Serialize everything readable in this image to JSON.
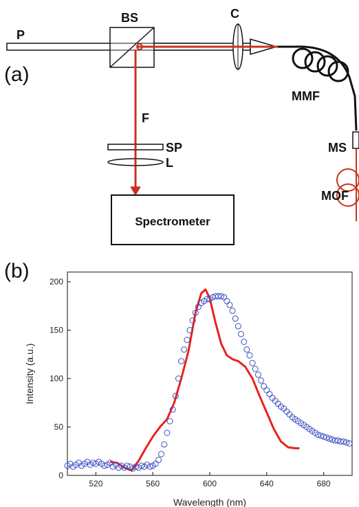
{
  "diagram": {
    "panel_label": "(a)",
    "labels": {
      "pump": "P",
      "beam_splitter": "BS",
      "coupler": "C",
      "fluorescence": "F",
      "short_pass": "SP",
      "lens": "L",
      "mmf": "MMF",
      "ms": "MS",
      "mof": "MOF",
      "spectrometer": "Spectrometer"
    },
    "colors": {
      "beam": "#c8321e",
      "outline": "#111111"
    }
  },
  "chart": {
    "panel_label": "(b)"
  },
  "chart_data": {
    "type": "scatter",
    "xlabel": "Wavelength (nm)",
    "ylabel": "Intensity (a.u.)",
    "xlim": [
      500,
      700
    ],
    "ylim": [
      0,
      210
    ],
    "xticks": [
      520,
      560,
      600,
      640,
      680
    ],
    "yticks": [
      0,
      50,
      100,
      150,
      200
    ],
    "grid": false,
    "series": [
      {
        "style": "line",
        "color": "#e8221e",
        "x": [
          530,
          535,
          540,
          545,
          550,
          555,
          560,
          565,
          570,
          575,
          580,
          585,
          590,
          594,
          597,
          600,
          604,
          608,
          612,
          616,
          620,
          625,
          630,
          635,
          640,
          645,
          650,
          655,
          660,
          663
        ],
        "y": [
          14,
          13,
          8,
          5,
          15,
          28,
          40,
          50,
          58,
          75,
          100,
          128,
          168,
          188,
          192,
          183,
          158,
          136,
          124,
          120,
          118,
          112,
          100,
          82,
          65,
          48,
          35,
          29,
          28,
          28
        ]
      },
      {
        "style": "markers",
        "color": "#3a4fc0",
        "x": [
          500,
          502,
          504,
          506,
          508,
          510,
          512,
          514,
          516,
          518,
          520,
          522,
          524,
          526,
          528,
          530,
          532,
          534,
          536,
          538,
          540,
          542,
          544,
          546,
          548,
          550,
          552,
          554,
          556,
          558,
          560,
          562,
          564,
          566,
          568,
          570,
          572,
          574,
          576,
          578,
          580,
          582,
          584,
          586,
          588,
          590,
          592,
          594,
          596,
          598,
          600,
          602,
          604,
          606,
          608,
          610,
          612,
          614,
          616,
          618,
          620,
          622,
          624,
          626,
          628,
          630,
          632,
          634,
          636,
          638,
          640,
          642,
          644,
          646,
          648,
          650,
          652,
          654,
          656,
          658,
          660,
          662,
          664,
          666,
          668,
          670,
          672,
          674,
          676,
          678,
          680,
          682,
          684,
          686,
          688,
          690,
          692,
          694,
          696,
          698
        ],
        "y": [
          10,
          12,
          9,
          11,
          13,
          10,
          12,
          14,
          11,
          13,
          12,
          14,
          12,
          10,
          11,
          13,
          9,
          11,
          8,
          10,
          8,
          10,
          9,
          7,
          9,
          8,
          10,
          9,
          11,
          9,
          10,
          12,
          16,
          22,
          32,
          44,
          56,
          68,
          82,
          100,
          118,
          130,
          140,
          150,
          160,
          168,
          174,
          178,
          180,
          182,
          182,
          184,
          185,
          185,
          185,
          184,
          180,
          176,
          170,
          162,
          154,
          146,
          138,
          130,
          124,
          116,
          110,
          104,
          98,
          92,
          88,
          84,
          80,
          77,
          74,
          71,
          69,
          66,
          63,
          60,
          58,
          56,
          54,
          52,
          50,
          48,
          46,
          44,
          42,
          41,
          40,
          39,
          38,
          37,
          36,
          36,
          35,
          35,
          34,
          33
        ]
      }
    ]
  }
}
